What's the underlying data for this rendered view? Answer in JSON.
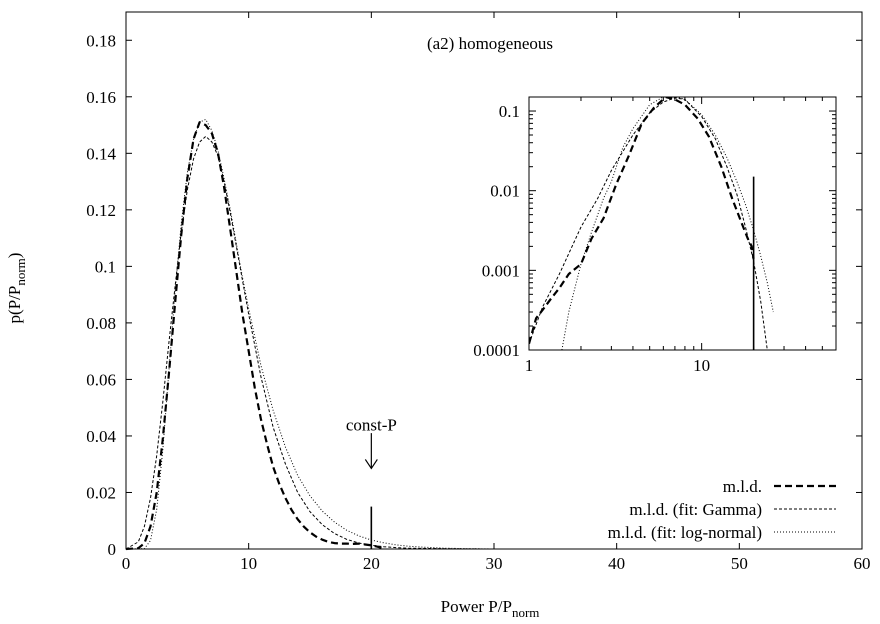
{
  "chart_data": [
    {
      "type": "line",
      "title": "(a2) homogeneous",
      "xlabel": "Power P/P",
      "xlabel_sub": "norm",
      "ylabel": "p(P/P",
      "ylabel_sub": "norm",
      "ylabel_close": ")",
      "xlim": [
        0,
        60
      ],
      "ylim": [
        0,
        0.19
      ],
      "xticks": [
        0,
        10,
        20,
        30,
        40,
        50,
        60
      ],
      "xtick_labels": [
        "0",
        "10",
        "20",
        "30",
        "40",
        "50",
        "60"
      ],
      "yticks": [
        0,
        0.02,
        0.04,
        0.06,
        0.08,
        0.1,
        0.12,
        0.14,
        0.16,
        0.18
      ],
      "ytick_labels": [
        "0",
        "0.02",
        "0.04",
        "0.06",
        "0.08",
        "0.1",
        "0.12",
        "0.14",
        "0.16",
        "0.18"
      ],
      "grid": false,
      "legend_position": "bottom-right",
      "series": [
        {
          "name": "m.l.d.",
          "style": "dashed-thick",
          "x": [
            0,
            1,
            1.5,
            2,
            2.5,
            3,
            3.5,
            4,
            4.5,
            5,
            5.5,
            6,
            6.5,
            7,
            7.5,
            8,
            8.5,
            9,
            9.5,
            10,
            10.5,
            11,
            11.5,
            12,
            12.5,
            13,
            13.5,
            14,
            14.5,
            15,
            15.5,
            16,
            16.5,
            17,
            17.5,
            18,
            18.5,
            19,
            19.5,
            20,
            20.5,
            21
          ],
          "y": [
            0,
            0.0003,
            0.002,
            0.008,
            0.02,
            0.039,
            0.062,
            0.087,
            0.111,
            0.131,
            0.145,
            0.151,
            0.15,
            0.147,
            0.14,
            0.128,
            0.113,
            0.098,
            0.083,
            0.07,
            0.057,
            0.046,
            0.037,
            0.029,
            0.023,
            0.018,
            0.0138,
            0.0105,
            0.0079,
            0.0059,
            0.0044,
            0.0033,
            0.0025,
            0.0021,
            0.0019,
            0.0019,
            0.0018,
            0.0019,
            0.0016,
            0.0013,
            0.0008,
            0.0002
          ]
        },
        {
          "name": "m.l.d. (fit: Gamma)",
          "style": "dashed-fine",
          "x": [
            0,
            1,
            1.5,
            2,
            2.5,
            3,
            3.5,
            4,
            4.5,
            5,
            5.5,
            6,
            6.5,
            7,
            7.5,
            8,
            8.5,
            9,
            9.5,
            10,
            11,
            12,
            13,
            14,
            15,
            16,
            17,
            18,
            19,
            20,
            21,
            22,
            23,
            24,
            26,
            28,
            30
          ],
          "y": [
            0,
            0.0025,
            0.008,
            0.018,
            0.033,
            0.052,
            0.073,
            0.093,
            0.112,
            0.127,
            0.138,
            0.144,
            0.146,
            0.144,
            0.139,
            0.13,
            0.119,
            0.107,
            0.095,
            0.083,
            0.061,
            0.043,
            0.03,
            0.02,
            0.0132,
            0.0086,
            0.0055,
            0.0034,
            0.0021,
            0.0013,
            0.0008,
            0.0005,
            0.0003,
            0.0002,
            0.0001,
            3e-05,
            0
          ]
        },
        {
          "name": "m.l.d. (fit: log-normal)",
          "style": "dotted",
          "x": [
            0,
            1.5,
            2,
            2.5,
            3,
            3.5,
            4,
            4.5,
            5,
            5.5,
            6,
            6.5,
            7,
            7.5,
            8,
            8.5,
            9,
            9.5,
            10,
            11,
            12,
            13,
            14,
            15,
            16,
            17,
            18,
            19,
            20,
            21,
            22,
            23,
            24,
            26,
            28,
            30
          ],
          "y": [
            0,
            0.0001,
            0.003,
            0.014,
            0.035,
            0.063,
            0.091,
            0.115,
            0.133,
            0.145,
            0.151,
            0.152,
            0.148,
            0.141,
            0.131,
            0.12,
            0.108,
            0.096,
            0.085,
            0.065,
            0.049,
            0.036,
            0.026,
            0.0188,
            0.0134,
            0.0095,
            0.0066,
            0.0046,
            0.0032,
            0.0022,
            0.0015,
            0.001,
            0.0007,
            0.0003,
            0.0001,
            0
          ]
        }
      ],
      "annotations": [
        {
          "text": "const-P",
          "x": 20,
          "y_top": 0.015,
          "arrow_y": 0.0285,
          "label_y": 0.042
        }
      ]
    },
    {
      "type": "line",
      "panel": "inset",
      "xscale": "log",
      "yscale": "log",
      "xlim": [
        1,
        60
      ],
      "ylim": [
        0.0001,
        0.15
      ],
      "xticks": [
        1,
        10
      ],
      "xtick_labels": [
        "1",
        "10"
      ],
      "yticks": [
        0.0001,
        0.001,
        0.01,
        0.1
      ],
      "ytick_labels": [
        "0.0001",
        "0.001",
        "0.01",
        "0.1"
      ],
      "series": [
        {
          "name": "m.l.d.",
          "style": "dashed-thick",
          "x": [
            1,
            1.1,
            1.2,
            1.35,
            1.5,
            1.7,
            2,
            2.3,
            2.7,
            3.2,
            3.8,
            4.5,
            5.3,
            6.2,
            7,
            8,
            9.5,
            11,
            13,
            15,
            17,
            18.5,
            19.5,
            20
          ],
          "y": [
            0.00012,
            0.00025,
            0.00032,
            0.00045,
            0.0006,
            0.0009,
            0.0012,
            0.0025,
            0.0045,
            0.012,
            0.028,
            0.07,
            0.11,
            0.15,
            0.14,
            0.12,
            0.08,
            0.048,
            0.02,
            0.008,
            0.004,
            0.0025,
            0.002,
            0.0014
          ]
        },
        {
          "name": "m.l.d. (fit: Gamma)",
          "style": "dashed-fine",
          "x": [
            1,
            1.2,
            1.5,
            2,
            2.5,
            3,
            4,
            5,
            6,
            7,
            8,
            10,
            12,
            14,
            16,
            18,
            20,
            22,
            24
          ],
          "y": [
            0.00012,
            0.00035,
            0.0009,
            0.0035,
            0.008,
            0.018,
            0.05,
            0.095,
            0.13,
            0.146,
            0.14,
            0.085,
            0.045,
            0.02,
            0.009,
            0.0034,
            0.0013,
            0.0004,
            0.0001
          ]
        },
        {
          "name": "m.l.d. (fit: log-normal)",
          "style": "dotted",
          "x": [
            1.55,
            1.7,
            2,
            2.3,
            2.7,
            3,
            3.5,
            4,
            5,
            6,
            7,
            8,
            10,
            12,
            14,
            16,
            18,
            20,
            22,
            24,
            26
          ],
          "y": [
            0.0001,
            0.0003,
            0.0012,
            0.003,
            0.008,
            0.013,
            0.035,
            0.06,
            0.12,
            0.15,
            0.152,
            0.14,
            0.09,
            0.05,
            0.026,
            0.013,
            0.0066,
            0.0032,
            0.0015,
            0.0007,
            0.0003
          ]
        }
      ],
      "annotations": [
        {
          "text": "",
          "x": 20,
          "y_top": 0.015,
          "y_bottom": 0.0001
        }
      ]
    }
  ]
}
